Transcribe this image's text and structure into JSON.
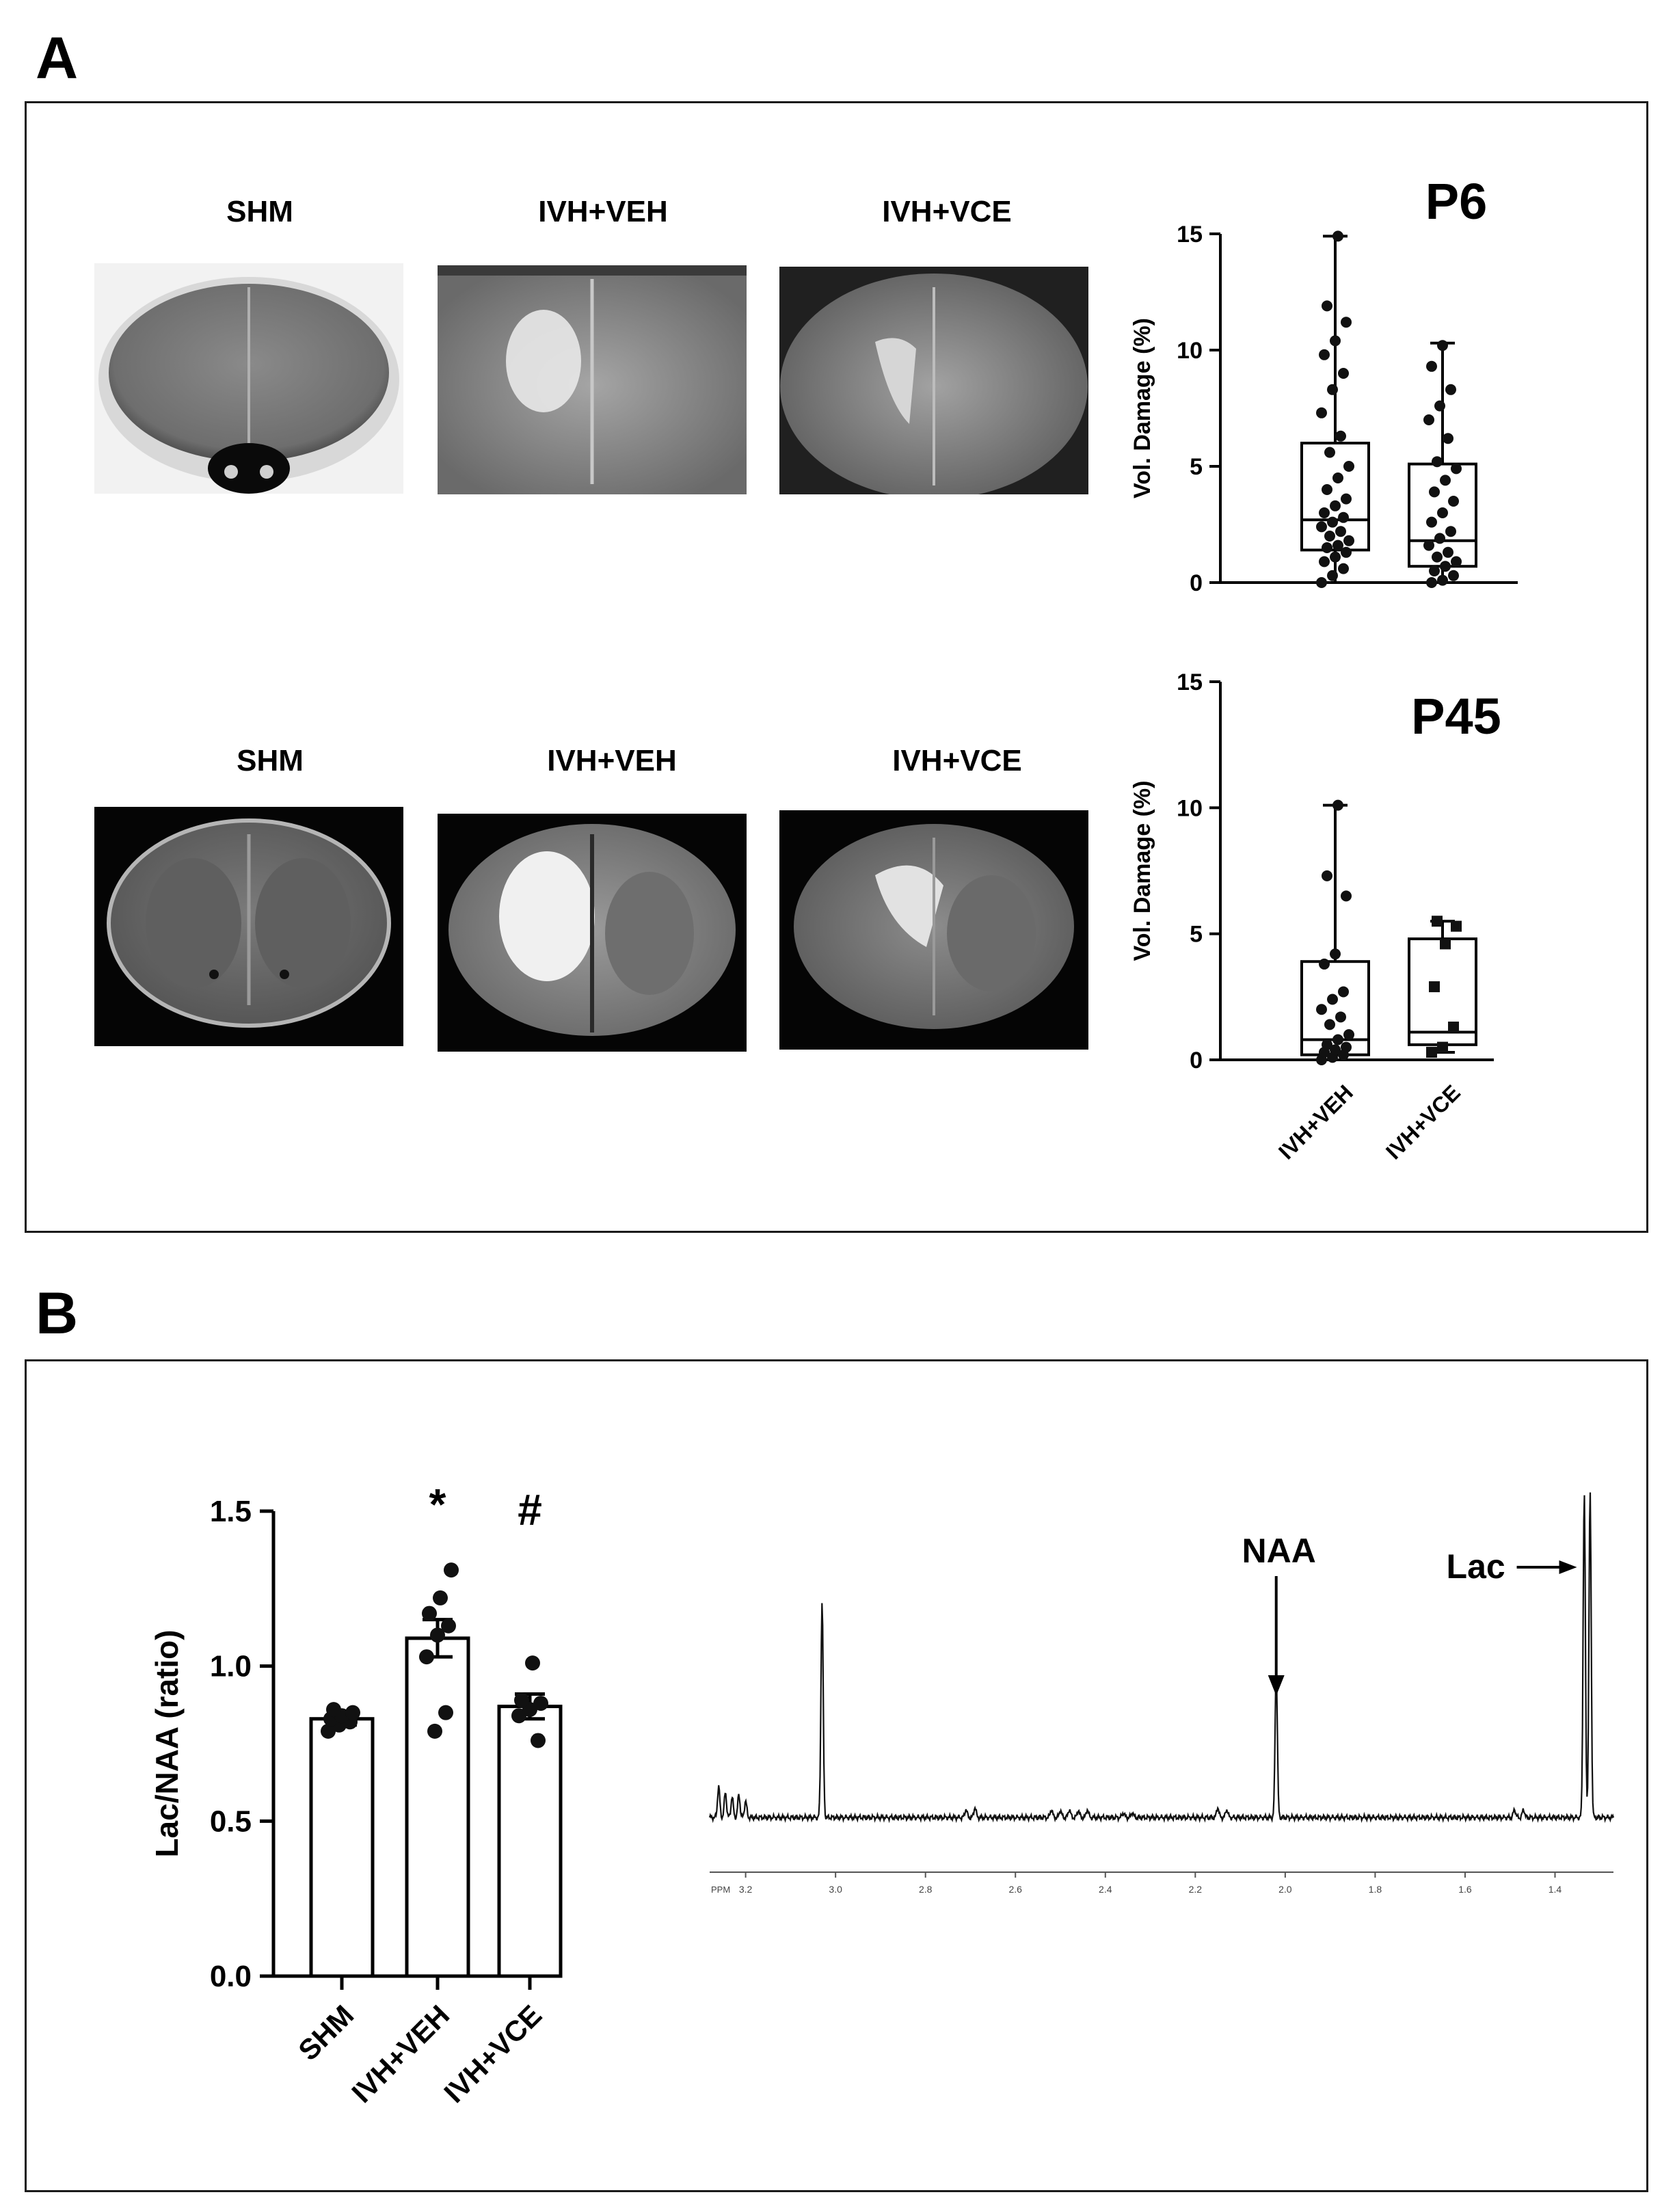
{
  "panels": {
    "a_label": "A",
    "b_label": "B"
  },
  "mri": {
    "top_labels": [
      "SHM",
      "IVH+VEH",
      "IVH+VCE"
    ],
    "bottom_labels": [
      "SHM",
      "IVH+VEH",
      "IVH+VCE"
    ]
  },
  "chart_data": [
    {
      "type": "box",
      "title": "P6",
      "ylabel": "Vol. Damage (%)",
      "ylim": [
        0,
        15
      ],
      "yticks": [
        0,
        5,
        10,
        15
      ],
      "categories": [
        "IVH+VEH",
        "IVH+VCE"
      ],
      "show_category_labels": false,
      "boxes": [
        {
          "min": 0.0,
          "q1": 1.4,
          "median": 2.7,
          "q3": 6.0,
          "max": 14.9,
          "points": [
            0.0,
            0.3,
            0.6,
            0.9,
            1.1,
            1.3,
            1.5,
            1.6,
            1.8,
            2.0,
            2.2,
            2.4,
            2.6,
            2.8,
            3.0,
            3.3,
            3.6,
            4.0,
            4.5,
            5.0,
            5.6,
            6.3,
            7.3,
            8.3,
            9.0,
            9.8,
            10.4,
            11.2,
            11.9,
            14.9
          ],
          "marker": "circle"
        },
        {
          "min": 0.0,
          "q1": 0.7,
          "median": 1.8,
          "q3": 5.1,
          "max": 10.3,
          "points": [
            0.0,
            0.1,
            0.3,
            0.5,
            0.7,
            0.9,
            1.1,
            1.3,
            1.6,
            1.9,
            2.2,
            2.6,
            3.0,
            3.5,
            3.9,
            4.4,
            4.9,
            5.2,
            6.2,
            7.0,
            7.6,
            8.3,
            9.3,
            10.2
          ],
          "marker": "circle"
        }
      ]
    },
    {
      "type": "box",
      "title": "P45",
      "ylabel": "Vol. Damage (%)",
      "ylim": [
        0,
        15
      ],
      "yticks": [
        0,
        5,
        10,
        15
      ],
      "categories": [
        "IVH+VEH",
        "IVH+VCE"
      ],
      "show_category_labels": true,
      "boxes": [
        {
          "min": 0.0,
          "q1": 0.2,
          "median": 0.8,
          "q3": 3.9,
          "max": 10.1,
          "points": [
            0.0,
            0.1,
            0.2,
            0.3,
            0.4,
            0.5,
            0.6,
            0.8,
            1.0,
            1.4,
            1.7,
            2.0,
            2.4,
            2.7,
            3.8,
            4.2,
            6.5,
            7.3,
            10.1
          ],
          "marker": "circle"
        },
        {
          "min": 0.3,
          "q1": 0.6,
          "median": 1.1,
          "q3": 4.8,
          "max": 5.5,
          "points": [
            0.3,
            0.5,
            1.3,
            2.9,
            4.6,
            5.3,
            5.5
          ],
          "marker": "square"
        }
      ]
    },
    {
      "type": "bar",
      "ylabel": "Lac/NAA (ratio)",
      "ylim": [
        0,
        1.5
      ],
      "yticks": [
        0.0,
        0.5,
        1.0,
        1.5
      ],
      "categories": [
        "SHM",
        "IVH+VEH",
        "IVH+VCE"
      ],
      "values": [
        0.83,
        1.09,
        0.87
      ],
      "sem": [
        0.02,
        0.06,
        0.04
      ],
      "annotations": [
        "",
        "*",
        "#"
      ],
      "points": [
        [
          0.79,
          0.81,
          0.82,
          0.83,
          0.84,
          0.85,
          0.86
        ],
        [
          0.79,
          0.85,
          1.03,
          1.1,
          1.13,
          1.17,
          1.22,
          1.31
        ],
        [
          0.76,
          0.84,
          0.86,
          0.88,
          0.89,
          1.01
        ]
      ]
    },
    {
      "type": "line",
      "title": "",
      "xlabel": "PPM",
      "xlim": [
        3.28,
        1.27
      ],
      "x_reversed": true,
      "xticks": [
        3.2,
        3.0,
        2.8,
        2.6,
        2.4,
        2.2,
        2.0,
        1.8,
        1.6,
        1.4
      ],
      "xtick_labels": [
        "3.2",
        "3.0",
        "2.8",
        "2.6",
        "2.4",
        "2.2",
        "2.0",
        "1.8",
        "1.6",
        "1.4"
      ],
      "axis_prefix": "PPM",
      "annotations": [
        {
          "label": "NAA",
          "ppm": 2.02,
          "arrow": "down"
        },
        {
          "label": "Lac",
          "ppm": 1.33,
          "arrow": "right"
        }
      ],
      "peaks": [
        {
          "ppm": 3.26,
          "height": 0.075
        },
        {
          "ppm": 3.245,
          "height": 0.06
        },
        {
          "ppm": 3.23,
          "height": 0.05
        },
        {
          "ppm": 3.215,
          "height": 0.055
        },
        {
          "ppm": 3.2,
          "height": 0.04
        },
        {
          "ppm": 3.03,
          "height": 0.52
        },
        {
          "ppm": 2.71,
          "height": 0.02
        },
        {
          "ppm": 2.69,
          "height": 0.025
        },
        {
          "ppm": 2.52,
          "height": 0.02
        },
        {
          "ppm": 2.5,
          "height": 0.018
        },
        {
          "ppm": 2.48,
          "height": 0.02
        },
        {
          "ppm": 2.46,
          "height": 0.018
        },
        {
          "ppm": 2.44,
          "height": 0.02
        },
        {
          "ppm": 2.36,
          "height": 0.012
        },
        {
          "ppm": 2.34,
          "height": 0.012
        },
        {
          "ppm": 2.15,
          "height": 0.025
        },
        {
          "ppm": 2.13,
          "height": 0.02
        },
        {
          "ppm": 2.02,
          "height": 0.36
        },
        {
          "ppm": 1.49,
          "height": 0.02
        },
        {
          "ppm": 1.47,
          "height": 0.02
        },
        {
          "ppm": 1.335,
          "height": 0.78
        },
        {
          "ppm": 1.322,
          "height": 0.78
        }
      ]
    }
  ]
}
